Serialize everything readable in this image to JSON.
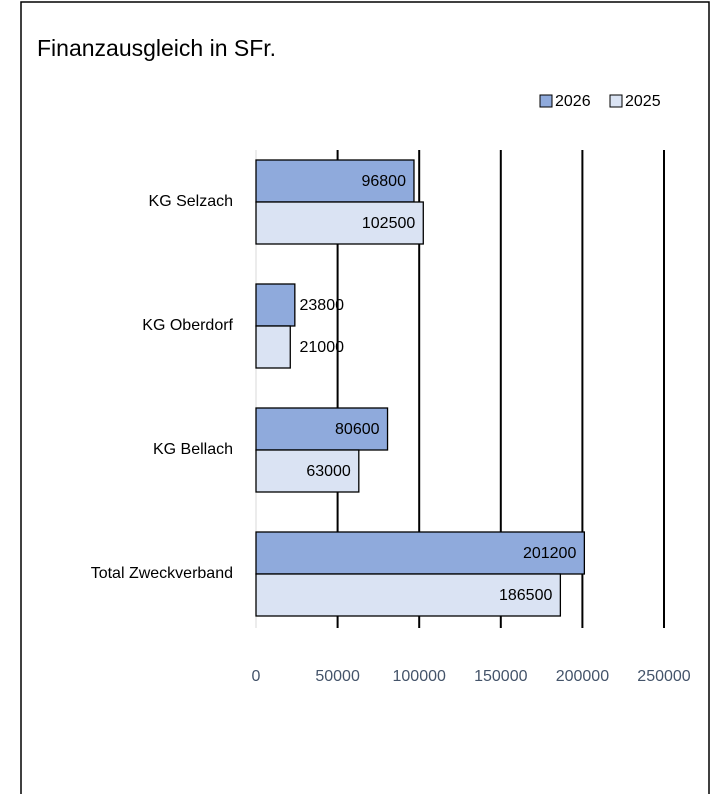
{
  "chart_data": {
    "type": "bar",
    "orientation": "horizontal",
    "title": "Finanzausgleich in SFr.",
    "categories": [
      "KG Selzach",
      "KG Oberdorf",
      "KG Bellach",
      "Total Zweckverband"
    ],
    "series": [
      {
        "name": "2026",
        "color": "#8faadc",
        "values": [
          96800,
          23800,
          80600,
          201200
        ]
      },
      {
        "name": "2025",
        "color": "#dae3f3",
        "values": [
          102500,
          21000,
          63000,
          186500
        ]
      }
    ],
    "xlim": [
      0,
      250000
    ],
    "xticks": [
      0,
      50000,
      100000,
      150000,
      200000,
      250000
    ],
    "grid": true,
    "legend": "top-right"
  }
}
